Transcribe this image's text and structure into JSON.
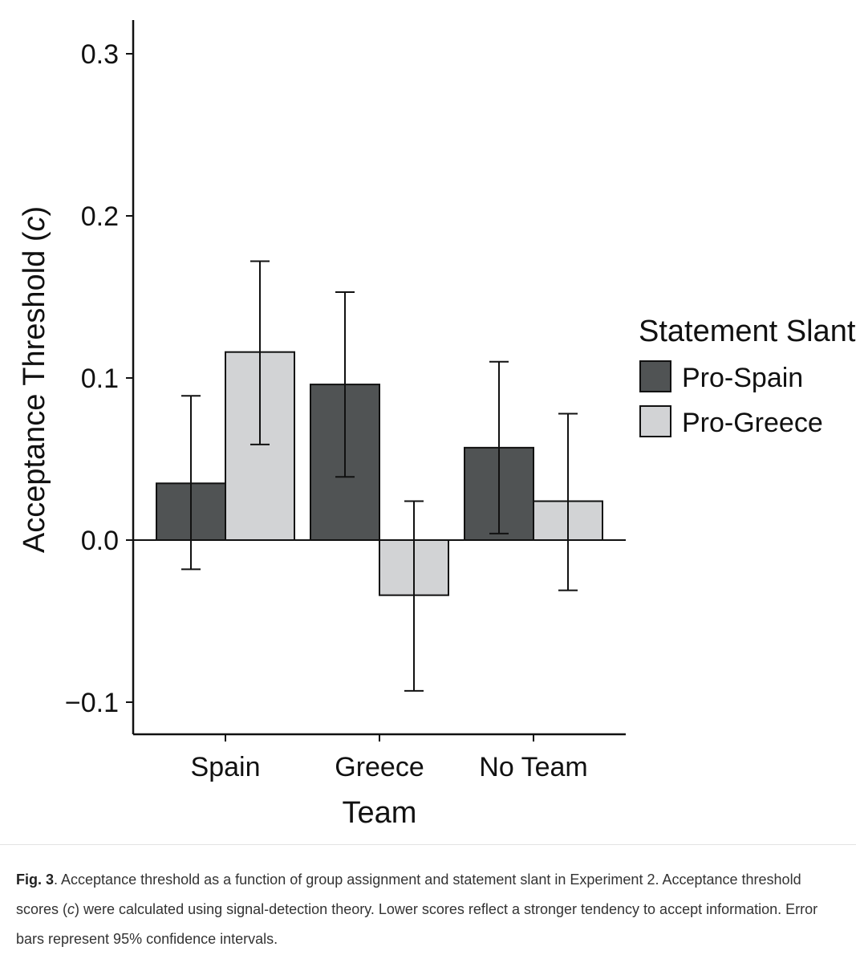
{
  "chart_data": {
    "type": "bar",
    "categories": [
      "Spain",
      "Greece",
      "No Team"
    ],
    "series": [
      {
        "name": "Pro-Spain",
        "color": "#505354",
        "values": [
          0.035,
          0.096,
          0.057
        ],
        "ci_low": [
          -0.018,
          0.039,
          0.004
        ],
        "ci_high": [
          0.089,
          0.153,
          0.11
        ]
      },
      {
        "name": "Pro-Greece",
        "color": "#d2d3d5",
        "values": [
          0.116,
          -0.034,
          0.024
        ],
        "ci_low": [
          0.059,
          -0.093,
          -0.031
        ],
        "ci_high": [
          0.172,
          0.024,
          0.078
        ]
      }
    ],
    "yticks": [
      -0.1,
      0.0,
      0.1,
      0.2,
      0.3
    ],
    "ytick_labels": [
      "−0.1",
      "0.0",
      "0.1",
      "0.2",
      "0.3"
    ],
    "ylim": [
      -0.12,
      0.32
    ],
    "xlabel": "Team",
    "ylabel": "Acceptance Threshold (",
    "ylabel_italic": "c",
    "ylabel_end": ")",
    "legend": {
      "title": "Statement Slant",
      "placement": "right"
    },
    "grid": false
  },
  "caption": {
    "label": "Fig. 3",
    "text_before_italic": ". Acceptance threshold as a function of group assignment and statement slant in Experiment 2. Acceptance threshold scores (",
    "italic": "c",
    "text_after_italic": ") were calculated using signal-detection theory. Lower scores reflect a stronger tendency to accept information. Error bars represent 95% confidence intervals."
  }
}
